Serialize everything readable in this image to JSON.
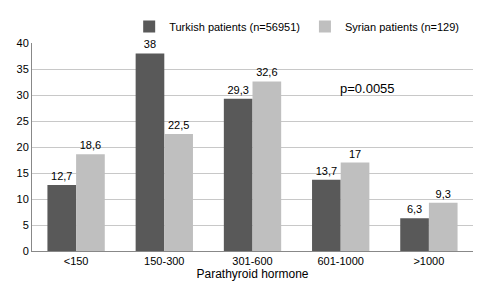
{
  "chart_data": {
    "type": "bar",
    "x_label": "Parathyroid hormone",
    "categories": [
      "<150",
      "150-300",
      "301-600",
      "601-1000",
      ">1000"
    ],
    "series": [
      {
        "name": "Turkish patients (n=56951)",
        "color": "#595959",
        "values": [
          12.7,
          38,
          29.3,
          13.7,
          6.3
        ],
        "value_labels": [
          "12,7",
          "38",
          "29,3",
          "13,7",
          "6,3"
        ]
      },
      {
        "name": "Syrian patients (n=129)",
        "color": "#bfbfbf",
        "values": [
          18.6,
          22.5,
          32.6,
          17,
          9.3
        ],
        "value_labels": [
          "18,6",
          "22,5",
          "32,6",
          "17",
          "9,3"
        ]
      }
    ],
    "annotations": [
      "p=0.0055"
    ],
    "ylim": [
      0,
      40
    ],
    "yticks": [
      0,
      5,
      10,
      15,
      20,
      25,
      30,
      35,
      40
    ],
    "grid": true,
    "legend": "top",
    "data_labels": true
  }
}
